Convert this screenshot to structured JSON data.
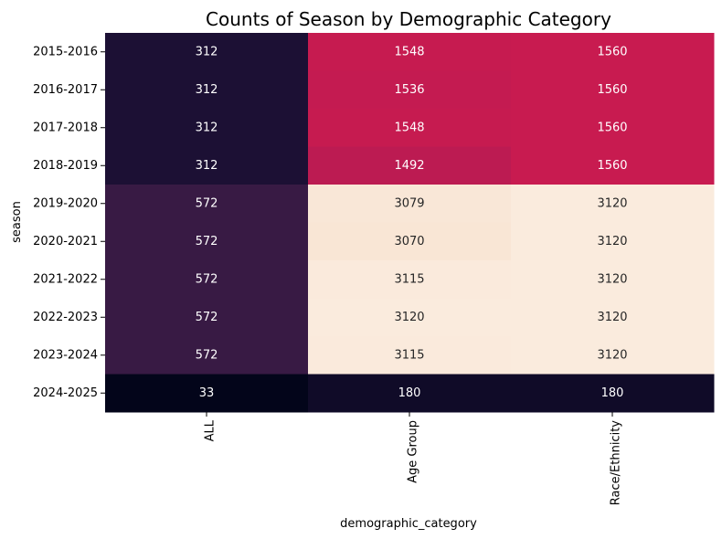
{
  "chart_data": {
    "type": "heatmap",
    "title": "Counts of Season by Demographic Category",
    "xlabel": "demographic_category",
    "ylabel": "season",
    "x_categories": [
      "ALL",
      "Age Group",
      "Race/Ethnicity"
    ],
    "y_categories": [
      "2015-2016",
      "2016-2017",
      "2017-2018",
      "2018-2019",
      "2019-2020",
      "2020-2021",
      "2021-2022",
      "2022-2023",
      "2023-2024",
      "2024-2025"
    ],
    "values": [
      [
        312,
        1548,
        1560
      ],
      [
        312,
        1536,
        1560
      ],
      [
        312,
        1548,
        1560
      ],
      [
        312,
        1492,
        1560
      ],
      [
        572,
        3079,
        3120
      ],
      [
        572,
        3070,
        3120
      ],
      [
        572,
        3115,
        3120
      ],
      [
        572,
        3120,
        3120
      ],
      [
        572,
        3115,
        3120
      ],
      [
        33,
        180,
        180
      ]
    ],
    "color_range": [
      33,
      3120
    ],
    "colormap": "rocket",
    "colorbar": false
  }
}
